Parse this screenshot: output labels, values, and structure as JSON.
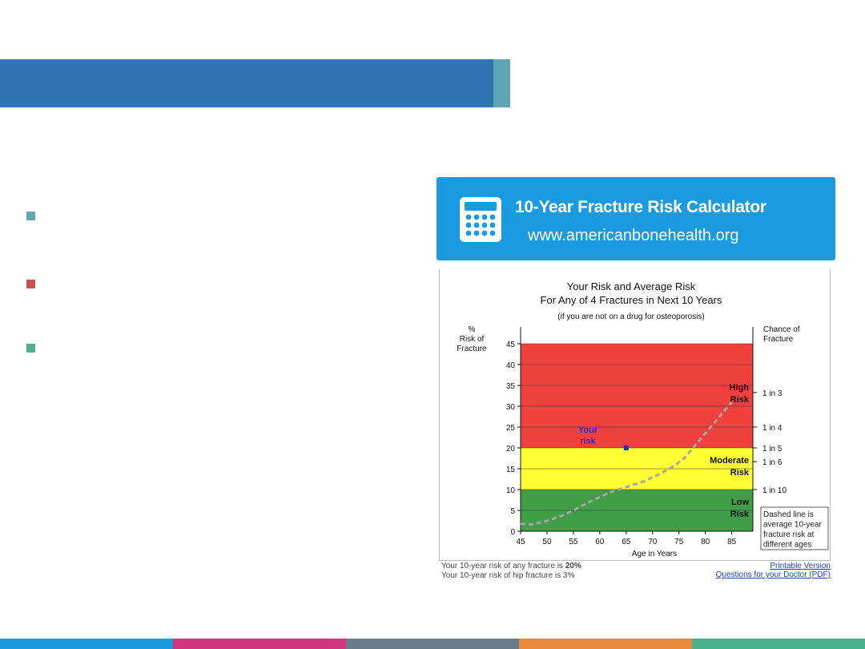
{
  "slide": {
    "colors": {
      "title_band": "#2f74b3",
      "title_accent": "#5ea6b3",
      "bullet_1": "#5ea6b3",
      "bullet_2": "#c9544f",
      "bullet_3": "#4fb08a"
    },
    "bottom_bar_colors": [
      "#1a9ae0",
      "#d2357f",
      "#6a7d8a",
      "#ea8a3a",
      "#48b08d"
    ]
  },
  "calculator": {
    "title": "10-Year Fracture Risk Calculator",
    "url": "www.americanbonehealth.org",
    "icon": "calculator-icon",
    "banner_color": "#1a9ae0"
  },
  "chart_data": {
    "type": "line",
    "title": "Your Risk and Average Risk",
    "subtitle": "For Any of 4 Fractures in Next 10 Years",
    "note": "(if you are not on a drug for osteoporosis)",
    "ylabel": "% Risk of Fracture",
    "ylabel_lines": [
      "%",
      "Risk of",
      "Fracture"
    ],
    "xlabel": "Age in Years",
    "right_axis_title_lines": [
      "Chance of",
      "Fracture"
    ],
    "xlim": [
      45,
      89
    ],
    "ylim": [
      0,
      45
    ],
    "x_ticks": [
      45,
      50,
      55,
      60,
      65,
      70,
      75,
      80,
      85
    ],
    "y_ticks": [
      0,
      5,
      10,
      15,
      20,
      25,
      30,
      35,
      40,
      45
    ],
    "right_ticks": [
      {
        "label": "1 in 3",
        "value": 33.3
      },
      {
        "label": "1 in 4",
        "value": 25
      },
      {
        "label": "1 in 5",
        "value": 20
      },
      {
        "label": "1 in 6",
        "value": 16.7
      },
      {
        "label": "1 in 10",
        "value": 10
      }
    ],
    "zones": [
      {
        "from": 0,
        "to": 10,
        "color": "#3f9e47",
        "label_lines": [
          "Low",
          "Risk"
        ]
      },
      {
        "from": 10,
        "to": 20,
        "color": "#ffff33",
        "label_lines": [
          "Moderate",
          "Risk"
        ]
      },
      {
        "from": 20,
        "to": 45,
        "color": "#f0413f",
        "label_lines": [
          "High",
          "Risk"
        ]
      }
    ],
    "series": [
      {
        "style": "dashed",
        "color": "#a6a6a6",
        "x": [
          45,
          47,
          50,
          53,
          55,
          58,
          61,
          63,
          65,
          68,
          71,
          74,
          76,
          78,
          80,
          82,
          84,
          85
        ],
        "y": [
          1.8,
          1.6,
          2.5,
          3.8,
          5,
          7,
          8.8,
          9.8,
          10.6,
          11.8,
          13.5,
          15.6,
          17.5,
          20.5,
          23.5,
          26.5,
          29.5,
          31
        ]
      }
    ],
    "your_risk": {
      "age": 65,
      "risk": 20,
      "label_lines": [
        "Your",
        "risk"
      ],
      "color": "#1f2fd8"
    },
    "legend_note_lines": [
      "Dashed line is",
      "average 10-year",
      "fracture risk at",
      "different ages"
    ]
  },
  "footer": {
    "line1_prefix": "Your 10-year risk of any fracture is ",
    "line1_value": "20%",
    "line2": "Your 10-year risk of hip fracture is 3%",
    "link1": "Printable Version",
    "link2": "Questions for your Doctor (PDF)"
  }
}
